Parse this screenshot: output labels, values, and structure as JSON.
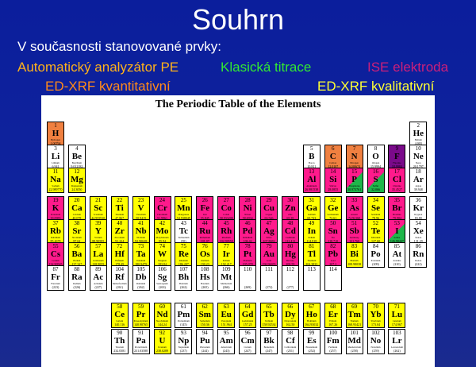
{
  "slide": {
    "title": "Souhrn",
    "line1": "V současnosti stanovované prvky:",
    "methods": {
      "analyzer": "Automatický analyzátor PE",
      "titration": "Klasická titrace",
      "ise": "ISE elektroda",
      "edxrf_quant": "ED-XRF kvantitativní",
      "edxrf_qual": "ED-XRF kvalitativní"
    }
  },
  "periodic_table": {
    "title": "The Periodic Table of the Elements",
    "colors": {
      "y": "#ffff00",
      "m": "#ff1a8c",
      "o": "#f08040",
      "r": "#ff2a2a",
      "p": "#7a0a8a",
      "w": "#ffffff",
      "g": "#1fb64a"
    },
    "elements": [
      {
        "z": "1",
        "s": "H",
        "m": "Hydrogen",
        "w": "1.00794",
        "r": 1,
        "c": 1,
        "k": "o"
      },
      {
        "z": "2",
        "s": "He",
        "m": "Helium",
        "w": "4.003",
        "r": 1,
        "c": 18,
        "k": "w"
      },
      {
        "z": "3",
        "s": "Li",
        "m": "Lithium",
        "w": "6.941",
        "r": 2,
        "c": 1,
        "k": "w"
      },
      {
        "z": "4",
        "s": "Be",
        "m": "Beryllium",
        "w": "9.012182",
        "r": 2,
        "c": 2,
        "k": "w"
      },
      {
        "z": "5",
        "s": "B",
        "m": "Boron",
        "w": "10.811",
        "r": 2,
        "c": 13,
        "k": "w"
      },
      {
        "z": "6",
        "s": "C",
        "m": "Carbon",
        "w": "12.0107",
        "r": 2,
        "c": 14,
        "k": "o"
      },
      {
        "z": "7",
        "s": "N",
        "m": "Nitrogen",
        "w": "14.00674",
        "r": 2,
        "c": 15,
        "k": "o"
      },
      {
        "z": "8",
        "s": "O",
        "m": "Oxygen",
        "w": "15.9994",
        "r": 2,
        "c": 16,
        "k": "w"
      },
      {
        "z": "9",
        "s": "F",
        "m": "Fluorine",
        "w": "18.9984",
        "r": 2,
        "c": 17,
        "k": "p"
      },
      {
        "z": "10",
        "s": "Ne",
        "m": "Neon",
        "w": "20.1797",
        "r": 2,
        "c": 18,
        "k": "w"
      },
      {
        "z": "11",
        "s": "Na",
        "m": "Sodium",
        "w": "22.989770",
        "r": 3,
        "c": 1,
        "k": "y"
      },
      {
        "z": "12",
        "s": "Mg",
        "m": "Magnesium",
        "w": "24.3050",
        "r": 3,
        "c": 2,
        "k": "y"
      },
      {
        "z": "13",
        "s": "Al",
        "m": "Aluminum",
        "w": "26.981538",
        "r": 3,
        "c": 13,
        "k": "m"
      },
      {
        "z": "14",
        "s": "Si",
        "m": "Silicon",
        "w": "28.0855",
        "r": 3,
        "c": 14,
        "k": "m"
      },
      {
        "z": "15",
        "s": "P",
        "m": "Phosphorus",
        "w": "30.973761",
        "r": 3,
        "c": 15,
        "k": "g"
      },
      {
        "z": "16",
        "s": "S",
        "m": "Sulfur",
        "w": "32.066",
        "r": 3,
        "c": 16,
        "k": "g"
      },
      {
        "z": "17",
        "s": "Cl",
        "m": "Chlorine",
        "w": "35.4527",
        "r": 3,
        "c": 17,
        "k": "m"
      },
      {
        "z": "18",
        "s": "Ar",
        "m": "Argon",
        "w": "39.948",
        "r": 3,
        "c": 18,
        "k": "w"
      },
      {
        "z": "19",
        "s": "K",
        "m": "Potassium",
        "w": "39.0983",
        "r": 4,
        "c": 1,
        "k": "m"
      },
      {
        "z": "20",
        "s": "Ca",
        "m": "Calcium",
        "w": "40.078",
        "r": 4,
        "c": 2,
        "k": "y"
      },
      {
        "z": "21",
        "s": "Sc",
        "m": "Scandium",
        "w": "44.955910",
        "r": 4,
        "c": 3,
        "k": "y"
      },
      {
        "z": "22",
        "s": "Ti",
        "m": "Titanium",
        "w": "47.867",
        "r": 4,
        "c": 4,
        "k": "y"
      },
      {
        "z": "23",
        "s": "V",
        "m": "Vanadium",
        "w": "50.9415",
        "r": 4,
        "c": 5,
        "k": "y"
      },
      {
        "z": "24",
        "s": "Cr",
        "m": "Chromium",
        "w": "51.9961",
        "r": 4,
        "c": 6,
        "k": "m"
      },
      {
        "z": "25",
        "s": "Mn",
        "m": "Manganese",
        "w": "54.938049",
        "r": 4,
        "c": 7,
        "k": "y"
      },
      {
        "z": "26",
        "s": "Fe",
        "m": "Iron",
        "w": "55.845",
        "r": 4,
        "c": 8,
        "k": "m"
      },
      {
        "z": "27",
        "s": "Co",
        "m": "Cobalt",
        "w": "58.933200",
        "r": 4,
        "c": 9,
        "k": "m"
      },
      {
        "z": "28",
        "s": "Ni",
        "m": "Nickel",
        "w": "58.6934",
        "r": 4,
        "c": 10,
        "k": "m"
      },
      {
        "z": "29",
        "s": "Cu",
        "m": "Copper",
        "w": "63.546",
        "r": 4,
        "c": 11,
        "k": "m"
      },
      {
        "z": "30",
        "s": "Zn",
        "m": "Zinc",
        "w": "65.39",
        "r": 4,
        "c": 12,
        "k": "m"
      },
      {
        "z": "31",
        "s": "Ga",
        "m": "Gallium",
        "w": "69.723",
        "r": 4,
        "c": 13,
        "k": "y"
      },
      {
        "z": "32",
        "s": "Ge",
        "m": "Germanium",
        "w": "72.61",
        "r": 4,
        "c": 14,
        "k": "y"
      },
      {
        "z": "33",
        "s": "As",
        "m": "Arsenic",
        "w": "74.92160",
        "r": 4,
        "c": 15,
        "k": "m"
      },
      {
        "z": "34",
        "s": "Se",
        "m": "Selenium",
        "w": "78.96",
        "r": 4,
        "c": 16,
        "k": "y"
      },
      {
        "z": "35",
        "s": "Br",
        "m": "Bromine",
        "w": "79.904",
        "r": 4,
        "c": 17,
        "k": "m"
      },
      {
        "z": "36",
        "s": "Kr",
        "m": "Krypton",
        "w": "83.80",
        "r": 4,
        "c": 18,
        "k": "w"
      },
      {
        "z": "37",
        "s": "Rb",
        "m": "Rubidium",
        "w": "85.4678",
        "r": 5,
        "c": 1,
        "k": "y"
      },
      {
        "z": "38",
        "s": "Sr",
        "m": "Strontium",
        "w": "87.62",
        "r": 5,
        "c": 2,
        "k": "y"
      },
      {
        "z": "39",
        "s": "Y",
        "m": "Yttrium",
        "w": "88.90585",
        "r": 5,
        "c": 3,
        "k": "y"
      },
      {
        "z": "40",
        "s": "Zr",
        "m": "Zirconium",
        "w": "91.224",
        "r": 5,
        "c": 4,
        "k": "y"
      },
      {
        "z": "41",
        "s": "Nb",
        "m": "Niobium",
        "w": "92.90638",
        "r": 5,
        "c": 5,
        "k": "y"
      },
      {
        "z": "42",
        "s": "Mo",
        "m": "Molybdenum",
        "w": "95.94",
        "r": 5,
        "c": 6,
        "k": "y"
      },
      {
        "z": "43",
        "s": "Tc",
        "m": "Technetium",
        "w": "(98)",
        "r": 5,
        "c": 7,
        "k": "w"
      },
      {
        "z": "44",
        "s": "Ru",
        "m": "Ruthenium",
        "w": "101.07",
        "r": 5,
        "c": 8,
        "k": "m"
      },
      {
        "z": "45",
        "s": "Rh",
        "m": "Rhodium",
        "w": "102.90550",
        "r": 5,
        "c": 9,
        "k": "m"
      },
      {
        "z": "46",
        "s": "Pd",
        "m": "Palladium",
        "w": "106.42",
        "r": 5,
        "c": 10,
        "k": "m"
      },
      {
        "z": "47",
        "s": "Ag",
        "m": "Silver",
        "w": "107.8682",
        "r": 5,
        "c": 11,
        "k": "m"
      },
      {
        "z": "48",
        "s": "Cd",
        "m": "Cadmium",
        "w": "112.411",
        "r": 5,
        "c": 12,
        "k": "m"
      },
      {
        "z": "49",
        "s": "In",
        "m": "Indium",
        "w": "114.818",
        "r": 5,
        "c": 13,
        "k": "y"
      },
      {
        "z": "50",
        "s": "Sn",
        "m": "Tin",
        "w": "118.710",
        "r": 5,
        "c": 14,
        "k": "m"
      },
      {
        "z": "51",
        "s": "Sb",
        "m": "Antimony",
        "w": "121.760",
        "r": 5,
        "c": 15,
        "k": "m"
      },
      {
        "z": "52",
        "s": "Te",
        "m": "Tellurium",
        "w": "127.60",
        "r": 5,
        "c": 16,
        "k": "y"
      },
      {
        "z": "53",
        "s": "I",
        "m": "Iodine",
        "w": "126.90447",
        "r": 5,
        "c": 17,
        "k": "g"
      },
      {
        "z": "54",
        "s": "Xe",
        "m": "Xenon",
        "w": "131.29",
        "r": 5,
        "c": 18,
        "k": "w"
      },
      {
        "z": "55",
        "s": "Cs",
        "m": "Cesium",
        "w": "132.90545",
        "r": 6,
        "c": 1,
        "k": "m"
      },
      {
        "z": "56",
        "s": "Ba",
        "m": "Barium",
        "w": "137.327",
        "r": 6,
        "c": 2,
        "k": "y"
      },
      {
        "z": "57",
        "s": "La",
        "m": "Lanthanum",
        "w": "138.9055",
        "r": 6,
        "c": 3,
        "k": "y"
      },
      {
        "z": "72",
        "s": "Hf",
        "m": "Hafnium",
        "w": "178.49",
        "r": 6,
        "c": 4,
        "k": "y"
      },
      {
        "z": "73",
        "s": "Ta",
        "m": "Tantalum",
        "w": "180.9479",
        "r": 6,
        "c": 5,
        "k": "y"
      },
      {
        "z": "74",
        "s": "W",
        "m": "Tungsten",
        "w": "183.84",
        "r": 6,
        "c": 6,
        "k": "y"
      },
      {
        "z": "75",
        "s": "Re",
        "m": "Rhenium",
        "w": "186.207",
        "r": 6,
        "c": 7,
        "k": "y"
      },
      {
        "z": "76",
        "s": "Os",
        "m": "Osmium",
        "w": "190.23",
        "r": 6,
        "c": 8,
        "k": "y"
      },
      {
        "z": "77",
        "s": "Ir",
        "m": "Iridium",
        "w": "192.217",
        "r": 6,
        "c": 9,
        "k": "y"
      },
      {
        "z": "78",
        "s": "Pt",
        "m": "Platinum",
        "w": "195.078",
        "r": 6,
        "c": 10,
        "k": "m"
      },
      {
        "z": "79",
        "s": "Au",
        "m": "Gold",
        "w": "196.96655",
        "r": 6,
        "c": 11,
        "k": "m"
      },
      {
        "z": "80",
        "s": "Hg",
        "m": "Mercury",
        "w": "200.59",
        "r": 6,
        "c": 12,
        "k": "m"
      },
      {
        "z": "81",
        "s": "Tl",
        "m": "Thallium",
        "w": "204.3833",
        "r": 6,
        "c": 13,
        "k": "y"
      },
      {
        "z": "82",
        "s": "Pb",
        "m": "Lead",
        "w": "207.2",
        "r": 6,
        "c": 14,
        "k": "m"
      },
      {
        "z": "83",
        "s": "Bi",
        "m": "Bismuth",
        "w": "208.98038",
        "r": 6,
        "c": 15,
        "k": "y"
      },
      {
        "z": "84",
        "s": "Po",
        "m": "Polonium",
        "w": "(209)",
        "r": 6,
        "c": 16,
        "k": "w"
      },
      {
        "z": "85",
        "s": "At",
        "m": "Astatine",
        "w": "(210)",
        "r": 6,
        "c": 17,
        "k": "w"
      },
      {
        "z": "86",
        "s": "Rn",
        "m": "Radon",
        "w": "(222)",
        "r": 6,
        "c": 18,
        "k": "w"
      },
      {
        "z": "87",
        "s": "Fr",
        "m": "Francium",
        "w": "(223)",
        "r": 7,
        "c": 1,
        "k": "w"
      },
      {
        "z": "88",
        "s": "Ra",
        "m": "Radium",
        "w": "(226)",
        "r": 7,
        "c": 2,
        "k": "w"
      },
      {
        "z": "89",
        "s": "Ac",
        "m": "Actinium",
        "w": "(227)",
        "r": 7,
        "c": 3,
        "k": "w"
      },
      {
        "z": "104",
        "s": "Rf",
        "m": "Rutherfordium",
        "w": "(261)",
        "r": 7,
        "c": 4,
        "k": "w"
      },
      {
        "z": "105",
        "s": "Db",
        "m": "Dubnium",
        "w": "(262)",
        "r": 7,
        "c": 5,
        "k": "w"
      },
      {
        "z": "106",
        "s": "Sg",
        "m": "Seaborgium",
        "w": "(263)",
        "r": 7,
        "c": 6,
        "k": "w"
      },
      {
        "z": "107",
        "s": "Bh",
        "m": "Bohrium",
        "w": "(262)",
        "r": 7,
        "c": 7,
        "k": "w"
      },
      {
        "z": "108",
        "s": "Hs",
        "m": "Hassium",
        "w": "(265)",
        "r": 7,
        "c": 8,
        "k": "w"
      },
      {
        "z": "109",
        "s": "Mt",
        "m": "Meitnerium",
        "w": "(266)",
        "r": 7,
        "c": 9,
        "k": "w"
      },
      {
        "z": "110",
        "s": "",
        "m": "",
        "w": "(269)",
        "r": 7,
        "c": 10,
        "k": "w"
      },
      {
        "z": "111",
        "s": "",
        "m": "",
        "w": "(272)",
        "r": 7,
        "c": 11,
        "k": "w"
      },
      {
        "z": "112",
        "s": "",
        "m": "",
        "w": "(277)",
        "r": 7,
        "c": 12,
        "k": "w"
      },
      {
        "z": "113",
        "s": "",
        "m": "",
        "w": "",
        "r": 7,
        "c": 13,
        "k": "w"
      },
      {
        "z": "114",
        "s": "",
        "m": "",
        "w": "",
        "r": 7,
        "c": 14,
        "k": "w"
      },
      {
        "z": "58",
        "s": "Ce",
        "m": "Cerium",
        "w": "140.116",
        "r": 8,
        "c": 4,
        "k": "y"
      },
      {
        "z": "59",
        "s": "Pr",
        "m": "Praseodymium",
        "w": "140.90765",
        "r": 8,
        "c": 5,
        "k": "y"
      },
      {
        "z": "60",
        "s": "Nd",
        "m": "Neodymium",
        "w": "144.24",
        "r": 8,
        "c": 6,
        "k": "y"
      },
      {
        "z": "61",
        "s": "Pm",
        "m": "Promethium",
        "w": "(145)",
        "r": 8,
        "c": 7,
        "k": "w"
      },
      {
        "z": "62",
        "s": "Sm",
        "m": "Samarium",
        "w": "150.36",
        "r": 8,
        "c": 8,
        "k": "y"
      },
      {
        "z": "63",
        "s": "Eu",
        "m": "Europium",
        "w": "151.964",
        "r": 8,
        "c": 9,
        "k": "y"
      },
      {
        "z": "64",
        "s": "Gd",
        "m": "Gadolinium",
        "w": "157.25",
        "r": 8,
        "c": 10,
        "k": "y"
      },
      {
        "z": "65",
        "s": "Tb",
        "m": "Terbium",
        "w": "158.92534",
        "r": 8,
        "c": 11,
        "k": "y"
      },
      {
        "z": "66",
        "s": "Dy",
        "m": "Dysprosium",
        "w": "162.50",
        "r": 8,
        "c": 12,
        "k": "y"
      },
      {
        "z": "67",
        "s": "Ho",
        "m": "Holmium",
        "w": "164.93032",
        "r": 8,
        "c": 13,
        "k": "y"
      },
      {
        "z": "68",
        "s": "Er",
        "m": "Erbium",
        "w": "167.26",
        "r": 8,
        "c": 14,
        "k": "y"
      },
      {
        "z": "69",
        "s": "Tm",
        "m": "Thulium",
        "w": "168.93421",
        "r": 8,
        "c": 15,
        "k": "y"
      },
      {
        "z": "70",
        "s": "Yb",
        "m": "Ytterbium",
        "w": "173.04",
        "r": 8,
        "c": 16,
        "k": "y"
      },
      {
        "z": "71",
        "s": "Lu",
        "m": "Lutetium",
        "w": "174.967",
        "r": 8,
        "c": 17,
        "k": "y"
      },
      {
        "z": "90",
        "s": "Th",
        "m": "Thorium",
        "w": "232.0381",
        "r": 9,
        "c": 4,
        "k": "w"
      },
      {
        "z": "91",
        "s": "Pa",
        "m": "Protactinium",
        "w": "231.03588",
        "r": 9,
        "c": 5,
        "k": "w"
      },
      {
        "z": "92",
        "s": "U",
        "m": "Uranium",
        "w": "238.0289",
        "r": 9,
        "c": 6,
        "k": "y"
      },
      {
        "z": "93",
        "s": "Np",
        "m": "Neptunium",
        "w": "(237)",
        "r": 9,
        "c": 7,
        "k": "w"
      },
      {
        "z": "94",
        "s": "Pu",
        "m": "Plutonium",
        "w": "(244)",
        "r": 9,
        "c": 8,
        "k": "w"
      },
      {
        "z": "95",
        "s": "Am",
        "m": "Americium",
        "w": "(243)",
        "r": 9,
        "c": 9,
        "k": "w"
      },
      {
        "z": "96",
        "s": "Cm",
        "m": "Curium",
        "w": "(247)",
        "r": 9,
        "c": 10,
        "k": "w"
      },
      {
        "z": "97",
        "s": "Bk",
        "m": "Berkelium",
        "w": "(247)",
        "r": 9,
        "c": 11,
        "k": "w"
      },
      {
        "z": "98",
        "s": "Cf",
        "m": "Californium",
        "w": "(251)",
        "r": 9,
        "c": 12,
        "k": "w"
      },
      {
        "z": "99",
        "s": "Es",
        "m": "Einsteinium",
        "w": "(252)",
        "r": 9,
        "c": 13,
        "k": "w"
      },
      {
        "z": "100",
        "s": "Fm",
        "m": "Fermium",
        "w": "(257)",
        "r": 9,
        "c": 14,
        "k": "w"
      },
      {
        "z": "101",
        "s": "Md",
        "m": "Mendelevium",
        "w": "(258)",
        "r": 9,
        "c": 15,
        "k": "w"
      },
      {
        "z": "102",
        "s": "No",
        "m": "Nobelium",
        "w": "(259)",
        "r": 9,
        "c": 16,
        "k": "w"
      },
      {
        "z": "103",
        "s": "Lr",
        "m": "Lawrencium",
        "w": "(262)",
        "r": 9,
        "c": 17,
        "k": "w"
      }
    ]
  }
}
